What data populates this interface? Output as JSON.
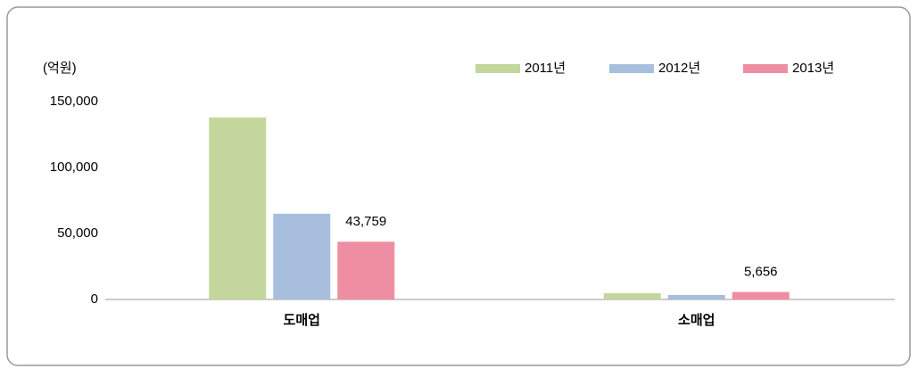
{
  "chart_data": {
    "type": "bar",
    "ylabel": "(억원)",
    "categories": [
      "도매업",
      "소매업"
    ],
    "series": [
      {
        "name": "2011년",
        "color": "#c3d69b",
        "values": [
          138000,
          4700
        ]
      },
      {
        "name": "2012년",
        "color": "#a7bedd",
        "values": [
          65000,
          3400
        ]
      },
      {
        "name": "2013년",
        "color": "#ef8ea2",
        "values": [
          43759,
          5656
        ],
        "value_labels": [
          "43,759",
          "5,656"
        ]
      }
    ],
    "ylim": [
      0,
      150000
    ],
    "yticks": [
      0,
      {
        "value": 50000,
        "label": "50,000"
      },
      {
        "value": 100000,
        "label": "100,000"
      },
      {
        "value": 150000,
        "label": "150,000"
      }
    ],
    "grid": false,
    "legend": "top-right"
  }
}
